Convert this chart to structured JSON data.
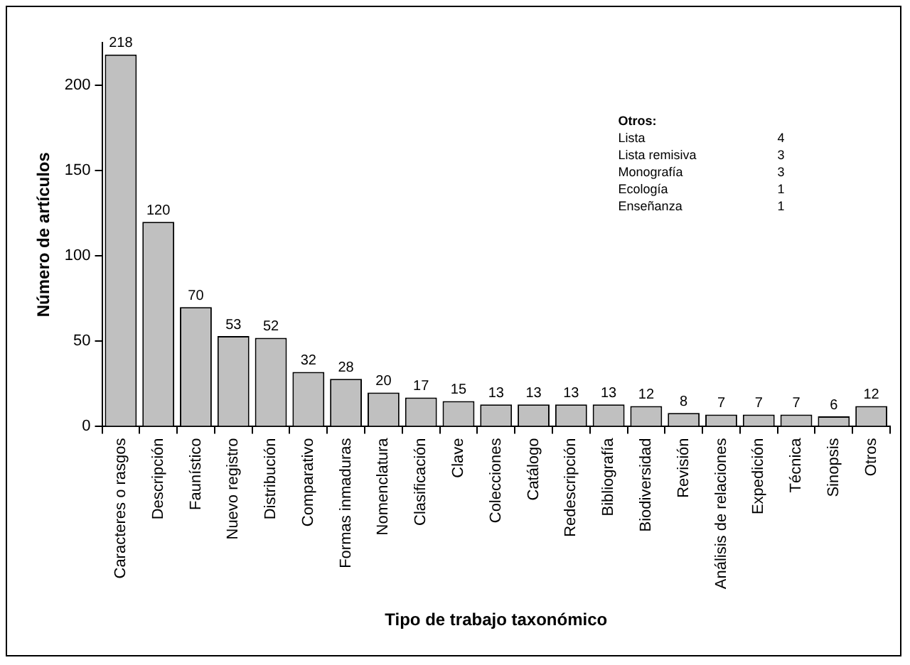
{
  "chart_data": {
    "type": "bar",
    "xlabel": "Tipo de trabajo taxonómico",
    "ylabel": "Número de artículos",
    "categories": [
      "Caracteres o rasgos",
      "Descripción",
      "Faunístico",
      "Nuevo registro",
      "Distribución",
      "Comparativo",
      "Formas inmaduras",
      "Nomenclatura",
      "Clasificación",
      "Clave",
      "Colecciones",
      "Catálogo",
      "Redescripción",
      "Bibliografía",
      "Biodiversidad",
      "Revisión",
      "Análisis de relaciones",
      "Expedición",
      "Técnica",
      "Sinopsis",
      "Otros"
    ],
    "values": [
      218,
      120,
      70,
      53,
      52,
      32,
      28,
      20,
      17,
      15,
      13,
      13,
      13,
      13,
      12,
      8,
      7,
      7,
      7,
      6,
      12
    ],
    "color": "#c0c0c0",
    "ylim": [
      0,
      225
    ],
    "yticks": [
      0,
      50,
      100,
      150,
      200
    ],
    "grid": false,
    "legend": false,
    "data_labels": true,
    "annotations": [
      "Otros:",
      "Lista 4",
      "Lista remisiva 3",
      "Monografía 3",
      "Ecología 1",
      "Enseñanza 1"
    ]
  }
}
